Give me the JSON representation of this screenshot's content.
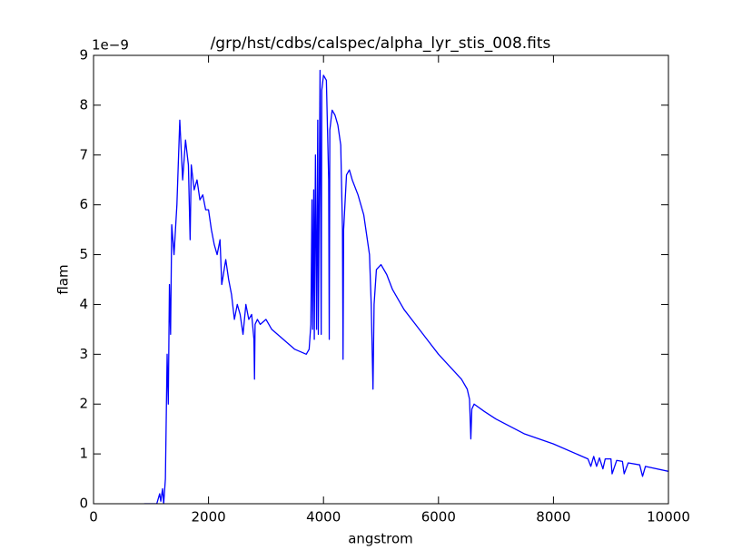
{
  "chart_data": {
    "type": "line",
    "title": "/grp/hst/cdbs/calspec/alpha_lyr_stis_008.fits",
    "xlabel": "angstrom",
    "ylabel": "flam",
    "y_offset_label": "1e−9",
    "color": "#0000ff",
    "xlim": [
      0,
      10000
    ],
    "ylim": [
      0,
      9
    ],
    "xticks": [
      0,
      2000,
      4000,
      6000,
      8000,
      10000
    ],
    "yticks": [
      0,
      1,
      2,
      3,
      4,
      5,
      6,
      7,
      8,
      9
    ],
    "x": [
      880,
      1100,
      1150,
      1170,
      1200,
      1220,
      1250,
      1280,
      1300,
      1320,
      1340,
      1360,
      1400,
      1450,
      1500,
      1550,
      1600,
      1650,
      1680,
      1700,
      1750,
      1800,
      1850,
      1900,
      1950,
      2000,
      2050,
      2100,
      2150,
      2200,
      2230,
      2300,
      2350,
      2400,
      2450,
      2500,
      2550,
      2600,
      2650,
      2700,
      2750,
      2790,
      2800,
      2810,
      2850,
      2900,
      3000,
      3100,
      3200,
      3300,
      3400,
      3500,
      3600,
      3700,
      3750,
      3780,
      3800,
      3810,
      3830,
      3840,
      3860,
      3880,
      3900,
      3910,
      3940,
      3960,
      3970,
      3990,
      4000,
      4050,
      4090,
      4100,
      4110,
      4150,
      4200,
      4250,
      4300,
      4330,
      4340,
      4350,
      4400,
      4450,
      4500,
      4600,
      4700,
      4800,
      4830,
      4861,
      4880,
      4920,
      5000,
      5100,
      5200,
      5400,
      5600,
      5800,
      6000,
      6200,
      6400,
      6500,
      6540,
      6563,
      6580,
      6620,
      6800,
      7000,
      7500,
      8000,
      8500,
      8600,
      8650,
      8700,
      8750,
      8800,
      8860,
      8900,
      9000,
      9020,
      9100,
      9200,
      9230,
      9300,
      9500,
      9550,
      9600,
      10000
    ],
    "values": [
      0.0,
      0.0,
      0.2,
      0.05,
      0.3,
      0.0,
      0.5,
      3.0,
      2.0,
      4.4,
      3.4,
      5.6,
      5.0,
      6.0,
      7.7,
      6.5,
      7.3,
      6.8,
      5.3,
      6.8,
      6.3,
      6.5,
      6.1,
      6.2,
      5.9,
      5.9,
      5.5,
      5.2,
      5.0,
      5.3,
      4.4,
      4.9,
      4.5,
      4.2,
      3.7,
      4.0,
      3.8,
      3.4,
      4.0,
      3.7,
      3.8,
      3.3,
      2.5,
      3.6,
      3.7,
      3.6,
      3.7,
      3.5,
      3.4,
      3.3,
      3.2,
      3.1,
      3.05,
      3.0,
      3.1,
      3.6,
      6.1,
      3.5,
      6.3,
      3.3,
      7.0,
      3.5,
      7.7,
      3.4,
      8.7,
      3.4,
      8.3,
      8.5,
      8.6,
      8.5,
      6.5,
      3.3,
      7.5,
      7.9,
      7.8,
      7.6,
      7.2,
      5.5,
      2.9,
      5.5,
      6.6,
      6.7,
      6.5,
      6.2,
      5.8,
      5.0,
      4.0,
      2.3,
      4.0,
      4.7,
      4.8,
      4.6,
      4.3,
      3.9,
      3.6,
      3.3,
      3.0,
      2.75,
      2.5,
      2.3,
      2.1,
      1.3,
      1.9,
      2.0,
      1.85,
      1.7,
      1.4,
      1.2,
      0.95,
      0.9,
      0.75,
      0.95,
      0.75,
      0.92,
      0.7,
      0.9,
      0.9,
      0.6,
      0.87,
      0.85,
      0.6,
      0.82,
      0.78,
      0.55,
      0.75,
      0.65
    ]
  }
}
